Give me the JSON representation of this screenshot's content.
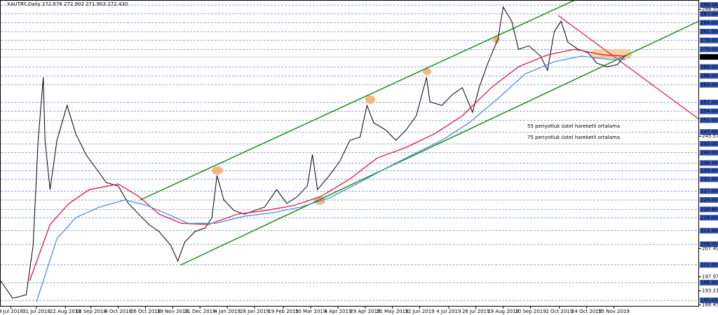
{
  "chart_data": {
    "type": "line",
    "title": "XAUTRY,Daily  272.676 272.902 271.903 272.430",
    "xlim": [
      0,
      410
    ],
    "ylim": [
      187.9,
      291.7
    ],
    "xticks": [
      {
        "value": 6,
        "label": "9 Jul 2018"
      },
      {
        "value": 21,
        "label": "31 Jul 2018"
      },
      {
        "value": 38,
        "label": "22 Aug 2018"
      },
      {
        "value": 53,
        "label": "12 Sep 2018"
      },
      {
        "value": 69,
        "label": "4 Oct 2018"
      },
      {
        "value": 85,
        "label": "26 Oct 2018"
      },
      {
        "value": 101,
        "label": "19 Nov 2018"
      },
      {
        "value": 117,
        "label": "11 Dec 2018"
      },
      {
        "value": 133,
        "label": "4 Jan 2019"
      },
      {
        "value": 149,
        "label": "28 Jan 2019"
      },
      {
        "value": 166,
        "label": "19 Feb 2019"
      },
      {
        "value": 182,
        "label": "13 Mar 2019"
      },
      {
        "value": 198,
        "label": "4 Apr 2019"
      },
      {
        "value": 214,
        "label": "29 Apr 2019"
      },
      {
        "value": 230,
        "label": "21 May 2019"
      },
      {
        "value": 246,
        "label": "12 Jun 2019"
      },
      {
        "value": 263,
        "label": "4 Jul 2019"
      },
      {
        "value": 279,
        "label": "26 Jul 2019"
      },
      {
        "value": 295,
        "label": "19 Aug 2019"
      },
      {
        "value": 311,
        "label": "10 Sep 2019"
      },
      {
        "value": 328,
        "label": "2 Oct 2019"
      },
      {
        "value": 344,
        "label": "24 Oct 2019"
      },
      {
        "value": 360,
        "label": "15 Nov 2019"
      }
    ],
    "yticks": [
      {
        "value": 288.554,
        "label": "288.554"
      },
      {
        "value": 245.574,
        "label": "245.574"
      },
      {
        "value": 207.494,
        "label": "207.494"
      },
      {
        "value": 197.974,
        "label": "197.974"
      },
      {
        "value": 193.214,
        "label": "193.214"
      },
      {
        "value": 188.454,
        "label": "188.454"
      }
    ],
    "levels": [
      {
        "value": 290,
        "label": "290.000"
      },
      {
        "value": 287,
        "label": "287.000"
      },
      {
        "value": 284,
        "label": "284.000"
      },
      {
        "value": 281,
        "label": "281.000"
      },
      {
        "value": 278,
        "label": "278.000"
      },
      {
        "value": 275,
        "label": "275.000"
      },
      {
        "value": 269,
        "label": "269.000"
      },
      {
        "value": 266,
        "label": "266.000"
      },
      {
        "value": 263,
        "label": "263.000"
      },
      {
        "value": 257,
        "label": "257.000"
      },
      {
        "value": 254,
        "label": "254.000"
      },
      {
        "value": 251,
        "label": "251.000"
      },
      {
        "value": 247,
        "label": "247.000"
      },
      {
        "value": 243,
        "label": "243.000"
      },
      {
        "value": 240,
        "label": "240.000"
      },
      {
        "value": 236.5,
        "label": "236.500"
      },
      {
        "value": 233.9,
        "label": "233.900"
      },
      {
        "value": 231,
        "label": "231.000"
      },
      {
        "value": 227,
        "label": "227.000"
      },
      {
        "value": 224,
        "label": "224.000"
      },
      {
        "value": 220.8,
        "label": "220.800"
      },
      {
        "value": 218,
        "label": "218.000"
      },
      {
        "value": 213.6,
        "label": "213.600"
      },
      {
        "value": 209,
        "label": "209.000"
      },
      {
        "value": 202,
        "label": "202.000"
      },
      {
        "value": 196,
        "label": "196.000"
      },
      {
        "value": 190,
        "label": "190.000"
      }
    ],
    "last_price": {
      "value": 272.43,
      "label": "272.430"
    },
    "series": [
      {
        "color": "#000000",
        "x": [
          0,
          7,
          15,
          19,
          22,
          25,
          26,
          29,
          33,
          39,
          44,
          50,
          56,
          62,
          69,
          75,
          81,
          87,
          93,
          100,
          104,
          108,
          114,
          120,
          124,
          127,
          131,
          137,
          143,
          149,
          155,
          162,
          168,
          174,
          180,
          183,
          186,
          193,
          199,
          205,
          211,
          215,
          219,
          226,
          232,
          238,
          244,
          250,
          252,
          259,
          265,
          271,
          277,
          281,
          286,
          292,
          295,
          300,
          304,
          310,
          317,
          321,
          325,
          329,
          333,
          339,
          345,
          350,
          356,
          362,
          367
        ],
        "values": [
          196.6,
          190.7,
          191.9,
          208.5,
          244.2,
          265.5,
          244.2,
          227.5,
          244.2,
          256,
          246.5,
          239.4,
          234.7,
          229.9,
          228.7,
          222.8,
          219.2,
          215.7,
          213.3,
          208.5,
          203.3,
          209.7,
          213.3,
          214.5,
          218,
          232.3,
          224,
          220.4,
          219.2,
          220.4,
          221.6,
          227.5,
          222.8,
          225.1,
          228.7,
          239.4,
          227.5,
          232.3,
          237,
          244.2,
          245.3,
          256,
          250.1,
          247.7,
          244.2,
          247.7,
          252.5,
          265.5,
          257.2,
          256,
          259.6,
          262,
          253.7,
          262.2,
          270.3,
          278.6,
          289.3,
          284.5,
          275,
          276.2,
          272.7,
          267.9,
          281,
          284.5,
          277.4,
          275,
          273.8,
          270.3,
          269.1,
          269.8,
          273.1
        ]
      },
      {
        "color": "#e0174b",
        "x": [
          17,
          29,
          40,
          52,
          69,
          81,
          93,
          106,
          122,
          139,
          155,
          172,
          188,
          205,
          221,
          238,
          255,
          271,
          288,
          304,
          321,
          337,
          354,
          367
        ],
        "values": [
          196.7,
          215.7,
          222.8,
          227.5,
          229.4,
          225.2,
          219.2,
          216.1,
          215.7,
          219.2,
          220.4,
          222.1,
          225.2,
          231.1,
          238.2,
          241.8,
          246.5,
          252.5,
          262,
          269.1,
          273.1,
          275,
          273.1,
          272.7
        ]
      },
      {
        "color": "#4f8fd9",
        "x": [
          21,
          33,
          44,
          58,
          73,
          85,
          98,
          110,
          126,
          143,
          160,
          176,
          193,
          209,
          226,
          242,
          259,
          275,
          292,
          308,
          325,
          341,
          358,
          367
        ],
        "values": [
          189.5,
          210.9,
          218,
          221.6,
          224,
          222.3,
          219.2,
          216.1,
          216.1,
          218.5,
          219.7,
          221.6,
          224.7,
          229.4,
          234.7,
          239.4,
          244.2,
          250.1,
          258.4,
          266.7,
          270.8,
          272.7,
          271.5,
          271.5
        ]
      }
    ],
    "annotations": [
      {
        "text": "55 periyotluk üstel hareketli ortalama",
        "color": "#e0174b"
      },
      {
        "text": "75 periyotluk üstel hareketli ortalama",
        "color": "#4f8fd9"
      }
    ]
  }
}
